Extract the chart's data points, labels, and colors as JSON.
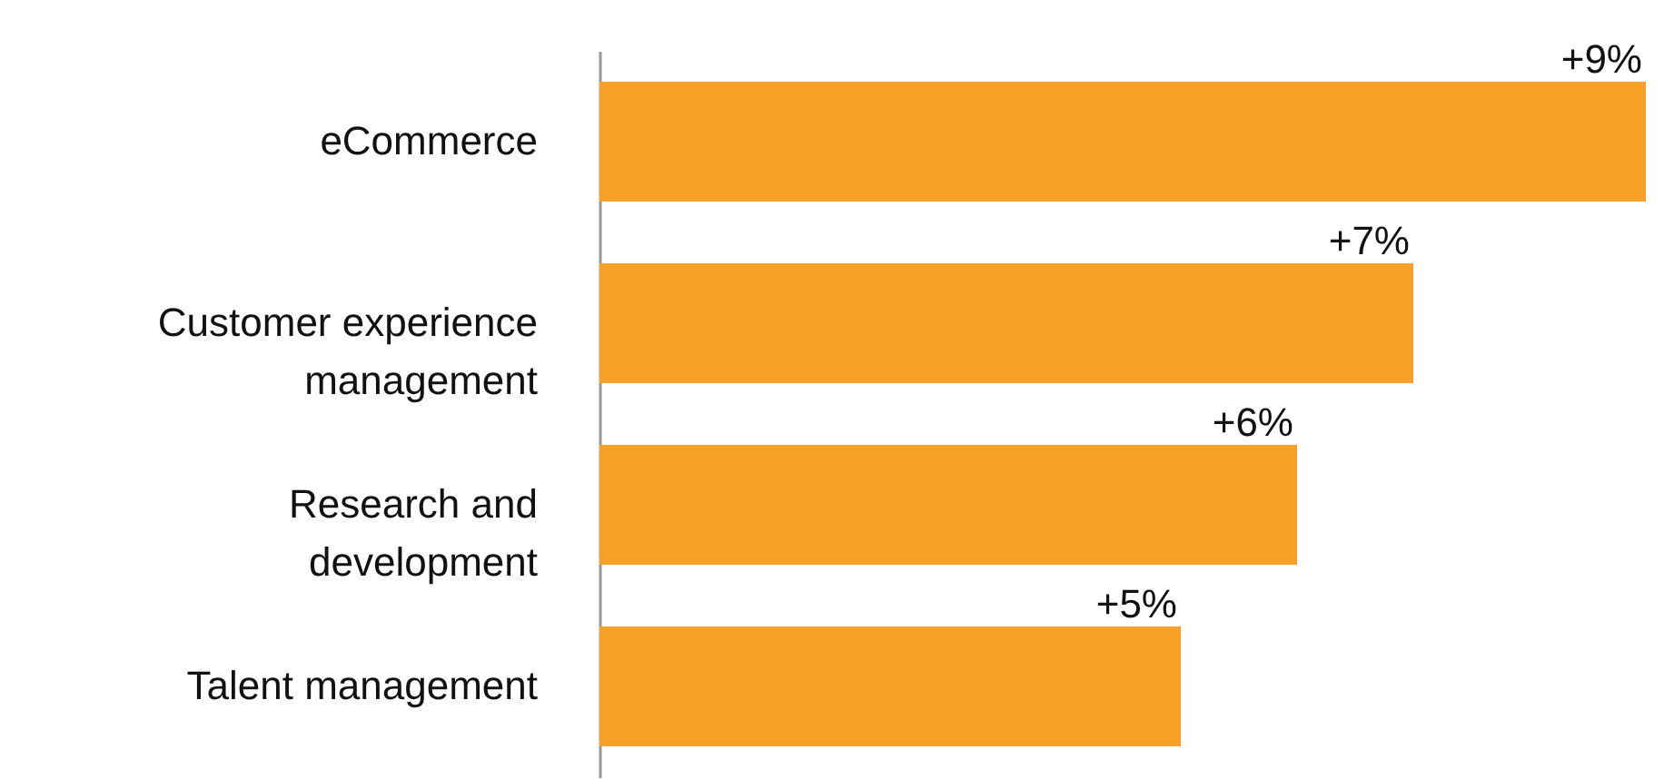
{
  "chart_data": {
    "type": "bar",
    "orientation": "horizontal",
    "categories": [
      "eCommerce",
      "Customer experience management",
      "Research and development",
      "Talent management"
    ],
    "values": [
      9,
      7,
      6,
      5
    ],
    "value_labels": [
      "+9%",
      "+7%",
      "+6%",
      "+5%"
    ],
    "color": "#f7a128"
  }
}
